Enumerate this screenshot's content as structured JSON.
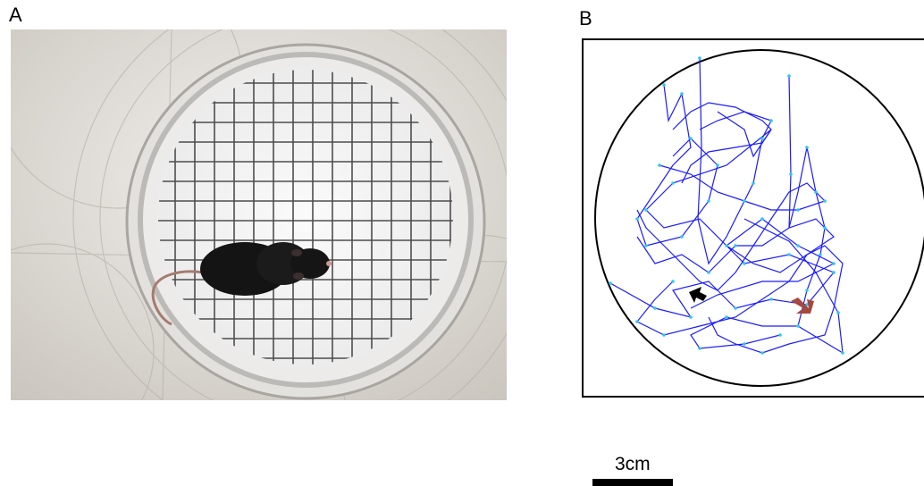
{
  "panels": {
    "left_label": "A",
    "right_label": "B"
  },
  "scale_bar": {
    "label": "3cm"
  },
  "colors": {
    "track_path": "#1c1cff",
    "track_points": "#2ec7f0",
    "start_arrow": "#000000",
    "end_arrow": "#a5493f",
    "arena_outline": "#000000"
  }
}
